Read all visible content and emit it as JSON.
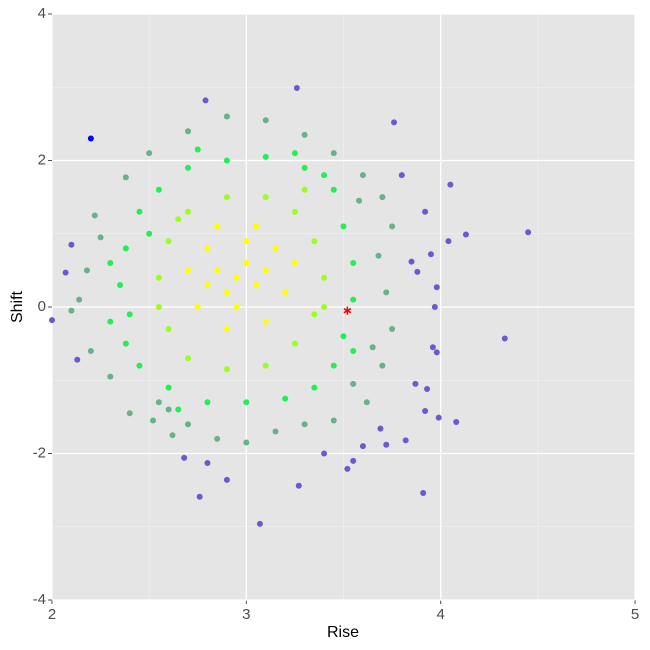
{
  "chart_data": {
    "type": "scatter",
    "x_label": "Rise",
    "y_label": "Shift",
    "xlim": [
      2,
      5
    ],
    "ylim": [
      -4,
      4
    ],
    "xticks": [
      2,
      3,
      4,
      5
    ],
    "yticks": [
      -4,
      -2,
      0,
      2,
      4
    ],
    "grid": true,
    "background": "#e5e5e5",
    "series": [
      {
        "color": "#6a5acd",
        "marker": "circle",
        "x": [
          2.0,
          2.07,
          2.1,
          2.13,
          2.79,
          3.26,
          3.76,
          4.05,
          4.13,
          4.45,
          4.33,
          3.98,
          3.96,
          4.08,
          3.99,
          3.92,
          3.91,
          3.82,
          3.69,
          3.55,
          3.52,
          3.27,
          3.07,
          2.76,
          2.9,
          2.8,
          2.68,
          3.98,
          3.97,
          3.88,
          4.04,
          3.95,
          3.85,
          3.92,
          3.8,
          3.93,
          3.87,
          3.72,
          3.6,
          3.4
        ],
        "values": [
          -0.18,
          0.47,
          0.85,
          -0.72,
          2.82,
          2.99,
          2.52,
          1.67,
          0.99,
          1.02,
          -0.43,
          -0.62,
          -0.55,
          -1.57,
          -1.51,
          -1.42,
          -2.54,
          -1.82,
          -1.66,
          -2.1,
          -2.21,
          -2.44,
          -2.96,
          -2.59,
          -2.36,
          -2.13,
          -2.06,
          0.27,
          0.0,
          0.48,
          0.9,
          0.72,
          0.62,
          1.3,
          1.8,
          -1.12,
          -1.05,
          -1.88,
          -1.9,
          -2.0
        ]
      },
      {
        "color": "#66b28a",
        "marker": "circle",
        "x": [
          2.1,
          2.14,
          2.22,
          2.4,
          2.52,
          2.62,
          2.7,
          2.85,
          3.0,
          3.15,
          3.3,
          3.45,
          3.62,
          3.7,
          3.75,
          3.72,
          3.68,
          3.75,
          3.7,
          3.6,
          3.45,
          3.3,
          3.1,
          2.9,
          2.7,
          2.5,
          2.38,
          2.25,
          2.18,
          2.2,
          2.3,
          2.55,
          3.55,
          3.65,
          3.58,
          2.6
        ],
        "values": [
          -0.05,
          0.1,
          1.25,
          -1.45,
          -1.55,
          -1.75,
          -1.6,
          -1.8,
          -1.85,
          -1.7,
          -1.6,
          -1.55,
          -1.3,
          -0.8,
          -0.3,
          0.2,
          0.7,
          1.1,
          1.5,
          1.8,
          2.1,
          2.35,
          2.55,
          2.6,
          2.4,
          2.1,
          1.77,
          0.95,
          0.5,
          -0.6,
          -0.95,
          -1.3,
          -1.05,
          -0.55,
          1.45,
          -1.4
        ]
      },
      {
        "color": "#22ee55",
        "marker": "circle",
        "x": [
          2.35,
          2.3,
          2.38,
          2.45,
          2.55,
          2.7,
          2.9,
          3.1,
          3.3,
          3.45,
          3.5,
          3.55,
          3.55,
          3.5,
          3.45,
          3.35,
          3.2,
          3.0,
          2.8,
          2.6,
          2.45,
          2.38,
          2.4,
          2.5,
          3.4,
          2.3,
          3.55,
          2.65,
          3.25,
          2.75
        ],
        "values": [
          0.3,
          -0.2,
          0.8,
          1.3,
          1.6,
          1.9,
          2.0,
          2.05,
          1.9,
          1.6,
          1.1,
          0.6,
          0.1,
          -0.4,
          -0.8,
          -1.1,
          -1.25,
          -1.3,
          -1.3,
          -1.1,
          -0.8,
          -0.5,
          -0.1,
          1.0,
          1.8,
          0.6,
          -0.6,
          -1.4,
          2.1,
          2.15
        ]
      },
      {
        "color": "#99ff22",
        "marker": "circle",
        "x": [
          2.55,
          2.6,
          2.7,
          2.9,
          3.1,
          3.25,
          3.35,
          3.4,
          3.35,
          3.25,
          3.1,
          2.9,
          2.7,
          2.6,
          2.55,
          3.3,
          2.65,
          3.4
        ],
        "values": [
          0.4,
          0.9,
          1.3,
          1.5,
          1.5,
          1.3,
          0.9,
          0.4,
          -0.1,
          -0.5,
          -0.8,
          -0.85,
          -0.7,
          -0.3,
          0.0,
          1.6,
          1.2,
          0.0
        ]
      },
      {
        "color": "#ffff00",
        "marker": "circle",
        "x": [
          2.95,
          2.85,
          3.05,
          2.9,
          3.0,
          2.8,
          3.1,
          2.95,
          3.0,
          2.8,
          3.15,
          2.75,
          3.2,
          2.9,
          3.1,
          2.7,
          3.25,
          2.85,
          3.05
        ],
        "values": [
          0.4,
          0.5,
          0.3,
          0.2,
          0.6,
          0.3,
          0.5,
          0.0,
          0.9,
          0.8,
          0.8,
          0.0,
          0.2,
          -0.3,
          -0.2,
          0.5,
          0.6,
          1.1,
          1.1
        ]
      },
      {
        "color": "#0000ff",
        "marker": "circle",
        "x": [
          2.2
        ],
        "values": [
          2.3
        ]
      },
      {
        "color": "#ff0000",
        "marker": "asterisk",
        "x": [
          3.52
        ],
        "values": [
          -0.05
        ]
      }
    ]
  }
}
